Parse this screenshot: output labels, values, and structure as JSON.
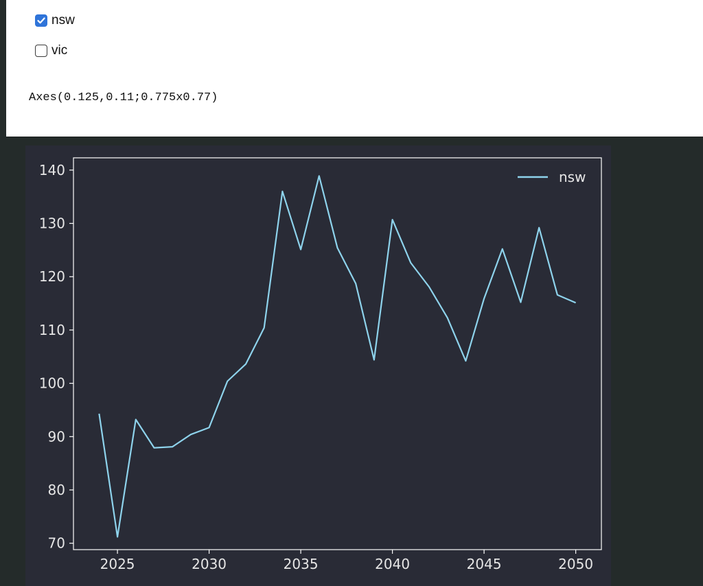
{
  "widgets": {
    "checkboxes": [
      {
        "label": "nsw",
        "checked": true
      },
      {
        "label": "vic",
        "checked": false
      }
    ],
    "axes_repr": "Axes(0.125,0.11;0.775x0.77)"
  },
  "colors": {
    "figure_bg": "#292b36",
    "line": "#8ed3ec",
    "axis": "#ffffff",
    "checkbox_accent": "#2f74d9"
  },
  "chart_data": {
    "type": "line",
    "title": "",
    "xlabel": "",
    "ylabel": "",
    "xlim": [
      2022.6,
      2051.4
    ],
    "ylim": [
      68.8,
      142.3
    ],
    "xticks": [
      2025,
      2030,
      2035,
      2040,
      2045,
      2050
    ],
    "yticks": [
      70,
      80,
      90,
      100,
      110,
      120,
      130,
      140
    ],
    "grid": false,
    "legend": "top-right",
    "series": [
      {
        "name": "nsw",
        "x": [
          2024,
          2025,
          2026,
          2027,
          2028,
          2029,
          2030,
          2031,
          2032,
          2033,
          2034,
          2035,
          2036,
          2037,
          2038,
          2039,
          2040,
          2041,
          2042,
          2043,
          2044,
          2045,
          2046,
          2047,
          2048,
          2049,
          2050
        ],
        "y": [
          94.3,
          71.2,
          93.2,
          87.9,
          88.1,
          90.4,
          91.7,
          100.4,
          103.6,
          110.4,
          136.0,
          125.1,
          138.9,
          125.4,
          118.7,
          104.4,
          130.7,
          122.6,
          118.1,
          112.3,
          104.2,
          115.9,
          125.2,
          115.2,
          129.2,
          116.6,
          115.1
        ]
      }
    ]
  }
}
